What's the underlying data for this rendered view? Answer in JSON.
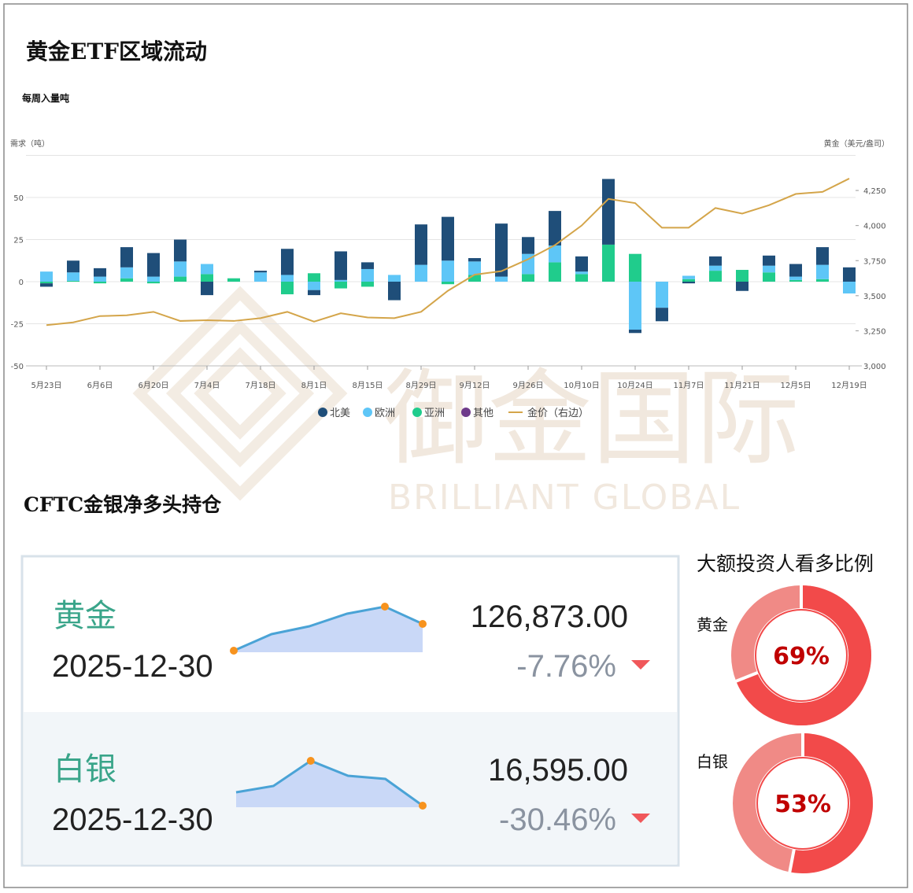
{
  "chart_data": [
    {
      "type": "bar",
      "stacked": true,
      "title": "黄金ETF区域流动",
      "subtitle": "每周入量吨",
      "y_label": "需求（吨）",
      "y2_label": "黄金（美元/盎司）",
      "categories": [
        "5月23日",
        null,
        "6月6日",
        null,
        "6月20日",
        null,
        "7月4日",
        null,
        "7月18日",
        null,
        "8月1日",
        null,
        "8月15日",
        null,
        "8月29日",
        null,
        "9月12日",
        null,
        "9月26日",
        null,
        "10月10日",
        null,
        "10月24日",
        null,
        "11月7日",
        null,
        "11月21日",
        null,
        "12月5日",
        null,
        "12月19日"
      ],
      "series": [
        {
          "name": "北美",
          "color": "#1f4e79",
          "values": [
            -2,
            7,
            5,
            12,
            14,
            13,
            -8,
            0,
            1,
            15.5,
            -3,
            17,
            4,
            -11,
            24,
            26,
            2,
            31.5,
            10,
            20.5,
            9,
            39,
            -2,
            -8,
            -1,
            5.5,
            -5.5,
            6,
            7.5,
            10.5,
            8.5
          ]
        },
        {
          "name": "欧洲",
          "color": "#5ec6f7",
          "values": [
            6,
            5,
            3,
            6.5,
            3,
            9,
            6,
            0,
            5.5,
            4,
            -5,
            1,
            7.5,
            4,
            10,
            12.5,
            8,
            3,
            12,
            10,
            1.5,
            0,
            -28.5,
            -15.5,
            2,
            3,
            0,
            4,
            2,
            8.5,
            -7
          ]
        },
        {
          "name": "亚洲",
          "color": "#20cc8c",
          "values": [
            -1,
            0.5,
            -1,
            2,
            -1,
            3,
            4.5,
            2,
            0,
            -7.5,
            5,
            -4,
            -3,
            0,
            0,
            -1.5,
            4,
            0,
            4.5,
            11.5,
            4.5,
            22,
            16.5,
            0,
            1.5,
            6.5,
            7,
            5.5,
            1,
            1.5,
            0
          ]
        },
        {
          "name": "其他",
          "color": "#6e3a8a",
          "values": [
            0,
            0,
            0,
            0,
            0,
            0,
            0,
            0,
            0,
            0,
            0,
            0,
            0,
            0,
            0,
            0,
            0,
            0,
            0,
            0,
            0,
            0,
            0,
            0,
            0,
            0,
            0,
            0,
            0,
            0,
            0
          ]
        },
        {
          "name": "金价（右边）",
          "color": "#d4a54a",
          "type": "line",
          "axis": "y2",
          "values": [
            3290,
            3310,
            3355,
            3360,
            3385,
            3320,
            3325,
            3320,
            3340,
            3385,
            3315,
            3375,
            3345,
            3340,
            3385,
            3535,
            3650,
            3675,
            3760,
            3860,
            4000,
            4190,
            4160,
            3985,
            3985,
            4125,
            4085,
            4145,
            4225,
            4240,
            4335
          ]
        }
      ],
      "ylim": [
        -50,
        75
      ],
      "yticks": [
        -50,
        -25,
        0,
        25,
        50
      ],
      "y2lim": [
        3000,
        4500
      ],
      "y2ticks": [
        {
          "value": 3000,
          "label": "3,000"
        },
        {
          "value": 3250,
          "label": "3,250"
        },
        {
          "value": 3500,
          "label": "3,500"
        },
        {
          "value": 3750,
          "label": "3,750"
        },
        {
          "value": 4000,
          "label": "4,000"
        },
        {
          "value": 4250,
          "label": "4,250"
        }
      ],
      "grid": true
    },
    {
      "type": "sparkline",
      "name": "黄金",
      "date": "2025-12-30",
      "value_text": "126,873.00",
      "change": "-7.76%",
      "values": [
        110380,
        120570,
        125420,
        133180,
        137545,
        126873
      ],
      "color": "#4aa3d6",
      "fill": "#c9d8f7",
      "marker_color": "#f7931e"
    },
    {
      "type": "sparkline",
      "name": "白银",
      "date": "2025-12-30",
      "value_text": "16,595.00",
      "change": "-30.46%",
      "values": [
        20230,
        21940,
        28780,
        24720,
        23864,
        16595
      ],
      "color": "#4aa3d6",
      "fill": "#c9d8f7",
      "marker_color": "#f7931e"
    },
    {
      "type": "donut",
      "title": "黄金",
      "value": 69,
      "value_label": "69%",
      "color": "#f24a4a",
      "rest_color": "#f08a86"
    },
    {
      "type": "donut",
      "title": "白银",
      "value": 53,
      "value_label": "53%",
      "color": "#f24a4a",
      "rest_color": "#f08a86"
    }
  ],
  "cftc_title": "CFTC金银净多头持仓",
  "sentiment_title": "大额投资人看多比例",
  "watermark": {
    "cn": "御金国际",
    "en": "BRILLIANT GLOBAL"
  }
}
